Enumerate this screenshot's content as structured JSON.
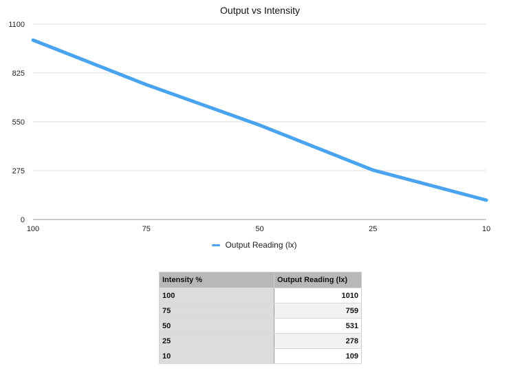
{
  "chart_data": {
    "type": "line",
    "title": "Output vs Intensity",
    "categories": [
      "100",
      "75",
      "50",
      "25",
      "10"
    ],
    "series": [
      {
        "name": "Output Reading (lx)",
        "values": [
          1010,
          759,
          531,
          278,
          109
        ],
        "color": "#4aa3ee"
      }
    ],
    "yticks": [
      "0",
      "275",
      "550",
      "825",
      "1100"
    ],
    "ylim": [
      0,
      1100
    ],
    "grid": true,
    "legend": "bottom-center"
  },
  "table": {
    "headers": [
      "Intensity %",
      "Output Reading (lx)"
    ],
    "rows": [
      [
        "100",
        "1010"
      ],
      [
        "75",
        "759"
      ],
      [
        "50",
        "531"
      ],
      [
        "25",
        "278"
      ],
      [
        "10",
        "109"
      ]
    ]
  }
}
